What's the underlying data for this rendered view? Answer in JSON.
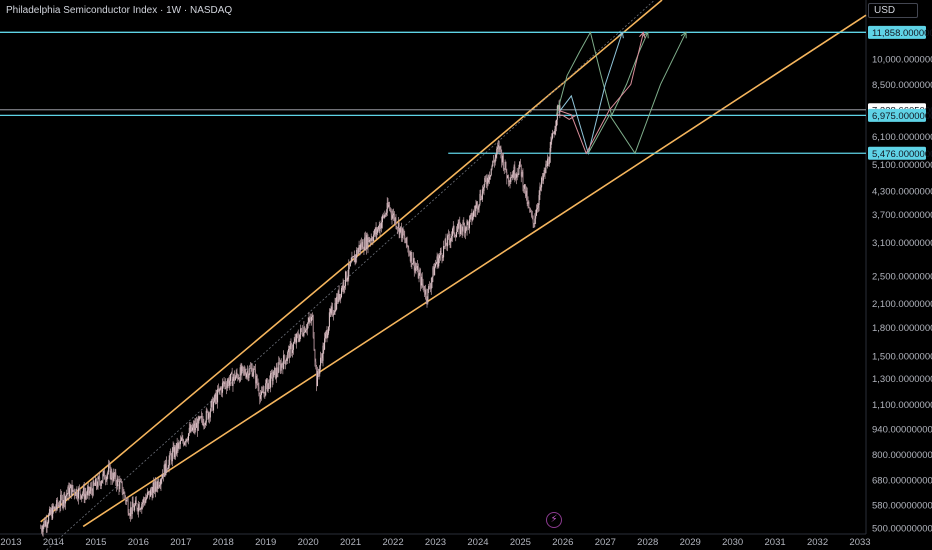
{
  "header": {
    "title": "Philadelphia Semiconductor Index · 1W · NASDAQ",
    "currency": "USD"
  },
  "colors": {
    "background": "#000000",
    "candle": "#c4a6ac",
    "channel": "#f5b55d",
    "level": "#5fd3e6",
    "grey_level": "#b2b5be",
    "path_a": "#7fae8b",
    "path_b": "#8fc4d9",
    "path_c": "#d98e9a"
  },
  "logo_icon": "bolt-icon",
  "chart_data": {
    "type": "candlestick",
    "title": "Philadelphia Semiconductor Index · 1W · NASDAQ",
    "xlabel": "",
    "ylabel": "",
    "y_scale": "log",
    "x_tick_labels": [
      "2013",
      "2014",
      "2015",
      "2016",
      "2017",
      "2018",
      "2019",
      "2020",
      "2021",
      "2022",
      "2023",
      "2024",
      "2025",
      "2026",
      "2027",
      "2028",
      "2029",
      "2030",
      "2031",
      "2032",
      "2033"
    ],
    "y_tick_labels": [
      "500.00000000",
      "580.00000000",
      "680.00000000",
      "800.00000000",
      "940.00000000",
      "1,100.00000000",
      "1,300.00000000",
      "1,500.00000000",
      "1,800.00000000",
      "2,100.00000000",
      "2,500.00000000",
      "3,100.00000000",
      "3,700.00000000",
      "4,300.00000000",
      "5,100.00000000",
      "6,100.00000000",
      "8,500.00000000",
      "10,000.00000000"
    ],
    "price_path": [
      [
        2013.7,
        500
      ],
      [
        2014.0,
        560
      ],
      [
        2014.4,
        640
      ],
      [
        2014.8,
        620
      ],
      [
        2015.3,
        720
      ],
      [
        2015.6,
        650
      ],
      [
        2015.8,
        560
      ],
      [
        2016.1,
        590
      ],
      [
        2016.4,
        650
      ],
      [
        2016.8,
        800
      ],
      [
        2017.2,
        920
      ],
      [
        2017.6,
        1020
      ],
      [
        2018.0,
        1250
      ],
      [
        2018.4,
        1340
      ],
      [
        2018.7,
        1380
      ],
      [
        2018.9,
        1150
      ],
      [
        2019.0,
        1230
      ],
      [
        2019.5,
        1500
      ],
      [
        2019.9,
        1800
      ],
      [
        2020.1,
        1900
      ],
      [
        2020.2,
        1280
      ],
      [
        2020.5,
        1900
      ],
      [
        2020.9,
        2500
      ],
      [
        2021.2,
        3000
      ],
      [
        2021.6,
        3300
      ],
      [
        2021.9,
        3900
      ],
      [
        2022.2,
        3300
      ],
      [
        2022.5,
        2700
      ],
      [
        2022.8,
        2200
      ],
      [
        2023.0,
        2700
      ],
      [
        2023.4,
        3300
      ],
      [
        2023.8,
        3500
      ],
      [
        2024.2,
        4600
      ],
      [
        2024.5,
        5700
      ],
      [
        2024.7,
        4700
      ],
      [
        2025.0,
        5000
      ],
      [
        2025.2,
        3800
      ],
      [
        2025.3,
        3500
      ],
      [
        2025.5,
        4500
      ],
      [
        2025.7,
        5500
      ],
      [
        2025.85,
        7000
      ],
      [
        2025.95,
        7600
      ]
    ],
    "channel_lines": [
      {
        "name": "upper",
        "points": [
          [
            2013.7,
            520
          ],
          [
            2027.8,
            12900
          ]
        ]
      },
      {
        "name": "middle",
        "points": [
          [
            2013.7,
            420
          ],
          [
            2027.3,
            11800
          ]
        ]
      },
      {
        "name": "lower",
        "points": [
          [
            2014.7,
            505
          ],
          [
            2033.0,
            12900
          ]
        ]
      }
    ],
    "horizontal_levels": [
      {
        "label": "11,858.00000000",
        "value": 11858,
        "style": "cyan"
      },
      {
        "label": "7,228.66050000",
        "value": 7228.6605,
        "style": "grey"
      },
      {
        "label": "6,975.00000000",
        "value": 6975,
        "style": "cyan"
      },
      {
        "label": "5,476.00000000",
        "value": 5476,
        "style": "cyan",
        "from": 2023.3
      }
    ],
    "projection_paths": [
      {
        "name": "path-a",
        "points": [
          [
            2025.85,
            7000
          ],
          [
            2026.1,
            9000
          ],
          [
            2026.4,
            10500
          ],
          [
            2026.65,
            11858
          ],
          [
            2026.9,
            9000
          ],
          [
            2027.15,
            6975
          ],
          [
            2027.5,
            8500
          ],
          [
            2027.8,
            10500
          ],
          [
            2028.0,
            11858
          ]
        ]
      },
      {
        "name": "path-b",
        "points": [
          [
            2025.9,
            7100
          ],
          [
            2026.2,
            7900
          ],
          [
            2026.6,
            5476
          ],
          [
            2027.0,
            8500
          ],
          [
            2027.4,
            11858
          ]
        ]
      },
      {
        "name": "path-c",
        "points": [
          [
            2025.9,
            7200
          ],
          [
            2026.2,
            7000
          ],
          [
            2026.55,
            5476
          ],
          [
            2027.1,
            7228.6605
          ],
          [
            2027.6,
            8500
          ],
          [
            2027.9,
            11858
          ]
        ]
      },
      {
        "name": "path-d",
        "points": [
          [
            2026.6,
            5476
          ],
          [
            2027.1,
            7000
          ],
          [
            2027.7,
            5476
          ],
          [
            2028.3,
            8500
          ],
          [
            2028.9,
            11858
          ]
        ]
      },
      {
        "name": "path-e",
        "points": [
          [
            2025.85,
            7000
          ],
          [
            2026.0,
            6975
          ],
          [
            2026.15,
            6800
          ],
          [
            2026.3,
            6975
          ]
        ]
      }
    ],
    "grid": false,
    "legend": "none"
  }
}
